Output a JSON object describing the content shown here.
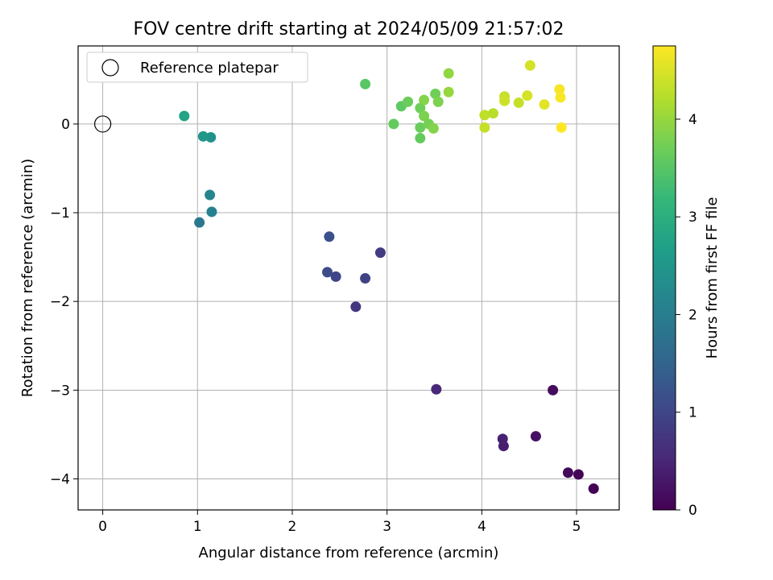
{
  "chart_data": {
    "type": "scatter",
    "title": "FOV centre drift starting at 2024/05/09 21:57:02",
    "xlabel": "Angular distance from reference (arcmin)",
    "ylabel": "Rotation from reference (arcmin)",
    "xlim": [
      -0.26,
      5.45
    ],
    "ylim": [
      -4.35,
      0.88
    ],
    "xticks": [
      0,
      1,
      2,
      3,
      4,
      5
    ],
    "yticks": [
      0,
      -1,
      -2,
      -3,
      -4
    ],
    "xtick_labels": [
      "0",
      "1",
      "2",
      "3",
      "4",
      "5"
    ],
    "ytick_labels": [
      "0",
      "−1",
      "−2",
      "−3",
      "−4"
    ],
    "grid": true,
    "legend": {
      "placement": "top-left",
      "entries": [
        {
          "label": "Reference platepar",
          "marker": "hollow-circle"
        }
      ]
    },
    "reference_point": {
      "x": 0,
      "y": 0
    },
    "colorbar": {
      "label": "Hours from first FF file",
      "min": 0,
      "max": 4.75,
      "ticks": [
        0,
        1,
        2,
        3,
        4
      ],
      "tick_labels": [
        "0",
        "1",
        "2",
        "3",
        "4"
      ],
      "colormap": "viridis",
      "colors": [
        "#440154",
        "#482878",
        "#3e4989",
        "#31688e",
        "#26828e",
        "#1f9e89",
        "#35b779",
        "#6ece58",
        "#b5de2b",
        "#fde725"
      ]
    },
    "points": [
      {
        "x": 5.18,
        "y": -4.11,
        "c": 0.0
      },
      {
        "x": 5.02,
        "y": -3.95,
        "c": 0.05
      },
      {
        "x": 4.91,
        "y": -3.93,
        "c": 0.1
      },
      {
        "x": 4.75,
        "y": -3.0,
        "c": 0.15
      },
      {
        "x": 4.57,
        "y": -3.52,
        "c": 0.2
      },
      {
        "x": 4.23,
        "y": -3.63,
        "c": 0.4
      },
      {
        "x": 4.22,
        "y": -3.55,
        "c": 0.45
      },
      {
        "x": 3.52,
        "y": -2.99,
        "c": 0.55
      },
      {
        "x": 2.67,
        "y": -2.06,
        "c": 0.75
      },
      {
        "x": 2.93,
        "y": -1.45,
        "c": 0.85
      },
      {
        "x": 2.77,
        "y": -1.74,
        "c": 0.95
      },
      {
        "x": 2.46,
        "y": -1.72,
        "c": 1.0
      },
      {
        "x": 2.37,
        "y": -1.67,
        "c": 1.1
      },
      {
        "x": 2.39,
        "y": -1.27,
        "c": 1.2
      },
      {
        "x": 1.02,
        "y": -1.11,
        "c": 1.9
      },
      {
        "x": 1.15,
        "y": -0.99,
        "c": 2.1
      },
      {
        "x": 1.13,
        "y": -0.8,
        "c": 2.2
      },
      {
        "x": 1.14,
        "y": -0.15,
        "c": 2.4
      },
      {
        "x": 1.06,
        "y": -0.14,
        "c": 2.5
      },
      {
        "x": 0.86,
        "y": 0.09,
        "c": 2.75
      },
      {
        "x": 2.77,
        "y": 0.45,
        "c": 3.5
      },
      {
        "x": 3.07,
        "y": 0.0,
        "c": 3.6
      },
      {
        "x": 3.15,
        "y": 0.2,
        "c": 3.55
      },
      {
        "x": 3.22,
        "y": 0.25,
        "c": 3.65
      },
      {
        "x": 3.35,
        "y": -0.16,
        "c": 3.6
      },
      {
        "x": 3.35,
        "y": -0.04,
        "c": 3.65
      },
      {
        "x": 3.35,
        "y": 0.18,
        "c": 3.7
      },
      {
        "x": 3.39,
        "y": 0.09,
        "c": 3.8
      },
      {
        "x": 3.39,
        "y": 0.27,
        "c": 3.85
      },
      {
        "x": 3.44,
        "y": 0.0,
        "c": 3.75
      },
      {
        "x": 3.49,
        "y": -0.05,
        "c": 3.85
      },
      {
        "x": 3.51,
        "y": 0.34,
        "c": 3.7
      },
      {
        "x": 3.54,
        "y": 0.25,
        "c": 3.8
      },
      {
        "x": 3.65,
        "y": 0.57,
        "c": 3.95
      },
      {
        "x": 3.65,
        "y": 0.36,
        "c": 4.0
      },
      {
        "x": 4.03,
        "y": 0.1,
        "c": 4.3
      },
      {
        "x": 4.03,
        "y": -0.04,
        "c": 4.35
      },
      {
        "x": 4.12,
        "y": 0.12,
        "c": 4.25
      },
      {
        "x": 4.24,
        "y": 0.31,
        "c": 4.35
      },
      {
        "x": 4.24,
        "y": 0.26,
        "c": 4.4
      },
      {
        "x": 4.39,
        "y": 0.24,
        "c": 4.35
      },
      {
        "x": 4.48,
        "y": 0.32,
        "c": 4.45
      },
      {
        "x": 4.51,
        "y": 0.66,
        "c": 4.45
      },
      {
        "x": 4.66,
        "y": 0.22,
        "c": 4.55
      },
      {
        "x": 4.82,
        "y": 0.39,
        "c": 4.7
      },
      {
        "x": 4.83,
        "y": 0.3,
        "c": 4.72
      },
      {
        "x": 4.84,
        "y": -0.04,
        "c": 4.75
      }
    ]
  }
}
